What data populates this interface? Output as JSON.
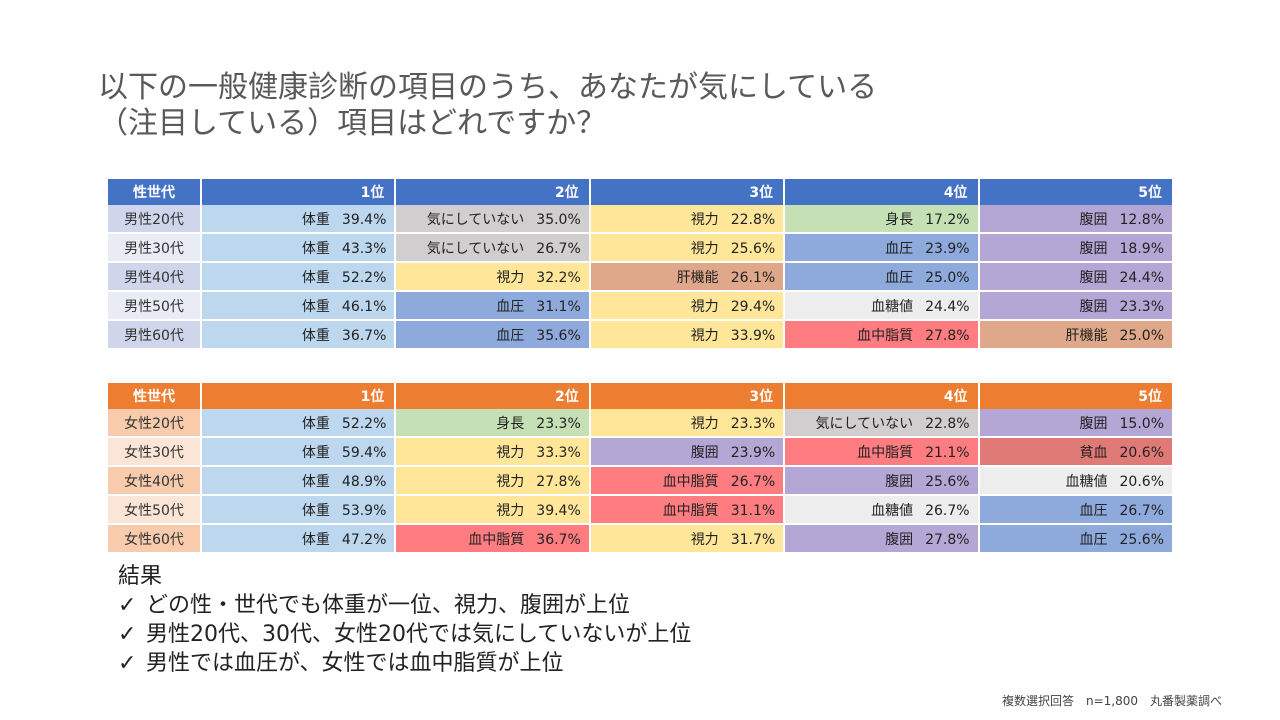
{
  "title": {
    "line1": "以下の一般健康診断の項目のうち、あなたが気にしている",
    "line2": "（注目している）項目はどれですか？"
  },
  "colors": {
    "体重": "#BDD7EE",
    "気にしていない": "#D0CECE",
    "視力": "#FFE699",
    "身長": "#C5E0B4",
    "腹囲": "#B4A7D6",
    "血圧": "#8EA9DB",
    "肝機能": "#E0A88A",
    "血糖値": "#EDEDED",
    "血中脂質": "#FF7C80",
    "貧血": "#E07A76"
  },
  "male_table": {
    "headers": [
      "性世代",
      "1位",
      "2位",
      "3位",
      "4位",
      "5位"
    ],
    "rows": [
      {
        "group": "男性20代",
        "cells": [
          {
            "item": "体重",
            "pct": "39.4%"
          },
          {
            "item": "気にしていない",
            "pct": "35.0%"
          },
          {
            "item": "視力",
            "pct": "22.8%"
          },
          {
            "item": "身長",
            "pct": "17.2%"
          },
          {
            "item": "腹囲",
            "pct": "12.8%"
          }
        ]
      },
      {
        "group": "男性30代",
        "cells": [
          {
            "item": "体重",
            "pct": "43.3%"
          },
          {
            "item": "気にしていない",
            "pct": "26.7%"
          },
          {
            "item": "視力",
            "pct": "25.6%"
          },
          {
            "item": "血圧",
            "pct": "23.9%"
          },
          {
            "item": "腹囲",
            "pct": "18.9%"
          }
        ]
      },
      {
        "group": "男性40代",
        "cells": [
          {
            "item": "体重",
            "pct": "52.2%"
          },
          {
            "item": "視力",
            "pct": "32.2%"
          },
          {
            "item": "肝機能",
            "pct": "26.1%"
          },
          {
            "item": "血圧",
            "pct": "25.0%"
          },
          {
            "item": "腹囲",
            "pct": "24.4%"
          }
        ]
      },
      {
        "group": "男性50代",
        "cells": [
          {
            "item": "体重",
            "pct": "46.1%"
          },
          {
            "item": "血圧",
            "pct": "31.1%"
          },
          {
            "item": "視力",
            "pct": "29.4%"
          },
          {
            "item": "血糖値",
            "pct": "24.4%"
          },
          {
            "item": "腹囲",
            "pct": "23.3%"
          }
        ]
      },
      {
        "group": "男性60代",
        "cells": [
          {
            "item": "体重",
            "pct": "36.7%"
          },
          {
            "item": "血圧",
            "pct": "35.6%"
          },
          {
            "item": "視力",
            "pct": "33.9%"
          },
          {
            "item": "血中脂質",
            "pct": "27.8%"
          },
          {
            "item": "肝機能",
            "pct": "25.0%"
          }
        ]
      }
    ]
  },
  "female_table": {
    "headers": [
      "性世代",
      "1位",
      "2位",
      "3位",
      "4位",
      "5位"
    ],
    "rows": [
      {
        "group": "女性20代",
        "cells": [
          {
            "item": "体重",
            "pct": "52.2%"
          },
          {
            "item": "身長",
            "pct": "23.3%"
          },
          {
            "item": "視力",
            "pct": "23.3%"
          },
          {
            "item": "気にしていない",
            "pct": "22.8%"
          },
          {
            "item": "腹囲",
            "pct": "15.0%"
          }
        ]
      },
      {
        "group": "女性30代",
        "cells": [
          {
            "item": "体重",
            "pct": "59.4%"
          },
          {
            "item": "視力",
            "pct": "33.3%"
          },
          {
            "item": "腹囲",
            "pct": "23.9%"
          },
          {
            "item": "血中脂質",
            "pct": "21.1%"
          },
          {
            "item": "貧血",
            "pct": "20.6%"
          }
        ]
      },
      {
        "group": "女性40代",
        "cells": [
          {
            "item": "体重",
            "pct": "48.9%"
          },
          {
            "item": "視力",
            "pct": "27.8%"
          },
          {
            "item": "血中脂質",
            "pct": "26.7%"
          },
          {
            "item": "腹囲",
            "pct": "25.6%"
          },
          {
            "item": "血糖値",
            "pct": "20.6%"
          }
        ]
      },
      {
        "group": "女性50代",
        "cells": [
          {
            "item": "体重",
            "pct": "53.9%"
          },
          {
            "item": "視力",
            "pct": "39.4%"
          },
          {
            "item": "血中脂質",
            "pct": "31.1%"
          },
          {
            "item": "血糖値",
            "pct": "26.7%"
          },
          {
            "item": "血圧",
            "pct": "26.7%"
          }
        ]
      },
      {
        "group": "女性60代",
        "cells": [
          {
            "item": "体重",
            "pct": "47.2%"
          },
          {
            "item": "血中脂質",
            "pct": "36.7%"
          },
          {
            "item": "視力",
            "pct": "31.7%"
          },
          {
            "item": "腹囲",
            "pct": "27.8%"
          },
          {
            "item": "血圧",
            "pct": "25.6%"
          }
        ]
      }
    ]
  },
  "conclusion": {
    "heading": "結果",
    "check_mark": "✓",
    "items": [
      "どの性・世代でも体重が一位、視力、腹囲が上位",
      "男性20代、30代、女性20代では気にしていないが上位",
      "男性では血圧が、女性では血中脂質が上位"
    ]
  },
  "footnote": {
    "method": "複数選択回答",
    "n": "n=1,800",
    "source": "丸番製薬調べ"
  }
}
